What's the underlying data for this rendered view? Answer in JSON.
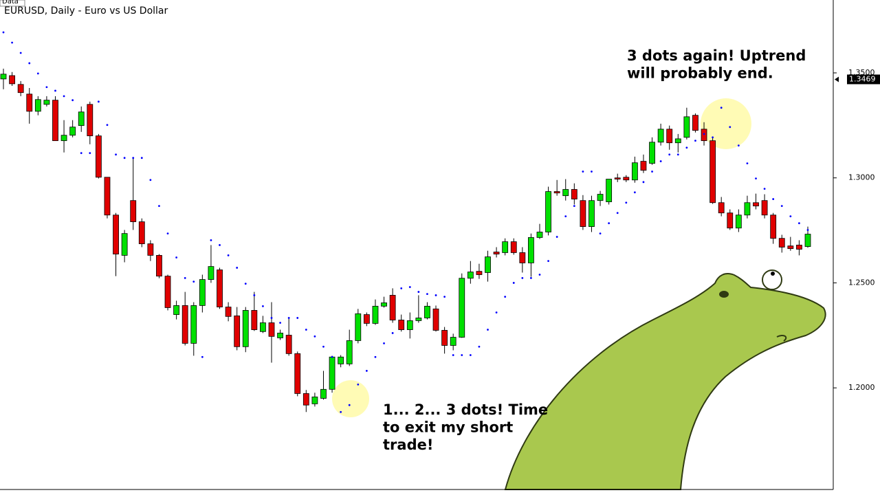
{
  "chart_data": {
    "type": "candlestick",
    "title": "EURUSD, Daily - Euro vs US Dollar",
    "tab_label": "Data",
    "ylim": [
      1.1516,
      1.3847
    ],
    "yticks": [
      {
        "value": 1.2,
        "label": "1.2000"
      },
      {
        "value": 1.25,
        "label": "1.2500"
      },
      {
        "value": 1.3,
        "label": "1.3000"
      },
      {
        "value": 1.35,
        "label": "1.3500"
      }
    ],
    "price_label": {
      "value": 1.3469,
      "label": "1.3469"
    },
    "up_color": "#00e000",
    "down_color": "#e00000",
    "sar_color": "#0000ff",
    "open": [
      1.3471,
      1.3487,
      1.3445,
      1.3399,
      1.3317,
      1.335,
      1.337,
      1.3177,
      1.3203,
      1.3249,
      1.335,
      1.32,
      1.3003,
      1.2823,
      1.2631,
      1.2892,
      1.2791,
      1.2686,
      1.2631,
      1.2532,
      1.2349,
      1.2392,
      1.2212,
      1.2392,
      1.2516,
      1.2562,
      1.2385,
      1.2343,
      1.2196,
      1.2369,
      1.2268,
      1.231,
      1.2238,
      1.2251,
      1.2163,
      1.1973,
      1.1924,
      1.195,
      1.1993,
      1.2114,
      1.2114,
      1.2225,
      1.2349,
      1.2307,
      1.2389,
      1.2441,
      1.2323,
      1.2277,
      1.232,
      1.2333,
      1.2376,
      1.2274,
      1.2202,
      1.2241,
      1.2522,
      1.2555,
      1.2549,
      1.2647,
      1.2644,
      1.2696,
      1.2644,
      1.2595,
      1.2716,
      1.2742,
      1.2935,
      1.2915,
      1.2945,
      1.2892,
      1.2768,
      1.2892,
      1.2886,
      1.3,
      1.3003,
      1.299,
      1.3079,
      1.3069,
      1.317,
      1.3232,
      1.3167,
      1.3193,
      1.3298,
      1.3232,
      1.3177,
      1.2882,
      1.2833,
      1.2761,
      1.2823,
      1.2882,
      1.2892,
      1.2823,
      1.2712,
      1.2676,
      1.268,
      1.2673
    ],
    "high": [
      1.352,
      1.3504,
      1.3461,
      1.3428,
      1.3389,
      1.3389,
      1.3389,
      1.3275,
      1.3275,
      1.334,
      1.3363,
      1.3209,
      1.3003,
      1.2833,
      1.2752,
      1.3095,
      1.2807,
      1.2703,
      1.2637,
      1.2539,
      1.2415,
      1.2457,
      1.2408,
      1.2539,
      1.268,
      1.2572,
      1.2408,
      1.2385,
      1.2385,
      1.2457,
      1.2343,
      1.2408,
      1.2277,
      1.2333,
      1.2173,
      1.199,
      1.1977,
      1.2081,
      1.2153,
      1.2156,
      1.2277,
      1.2376,
      1.2359,
      1.2421,
      1.2434,
      1.2474,
      1.2349,
      1.2359,
      1.2441,
      1.2408,
      1.2392,
      1.229,
      1.2258,
      1.2545,
      1.2604,
      1.2591,
      1.2653,
      1.267,
      1.2712,
      1.2712,
      1.267,
      1.2735,
      1.2781,
      1.2958,
      1.299,
      1.2994,
      1.2974,
      1.2918,
      1.2915,
      1.2938,
      1.2994,
      1.302,
      1.3013,
      1.3101,
      1.3111,
      1.3193,
      1.3258,
      1.3249,
      1.3209,
      1.3334,
      1.3307,
      1.3265,
      1.3193,
      1.2909,
      1.285,
      1.285,
      1.2915,
      1.2925,
      1.2922,
      1.2833,
      1.2729,
      1.2719,
      1.2703,
      1.2768
    ],
    "low": [
      1.3422,
      1.3438,
      1.3389,
      1.3258,
      1.3298,
      1.334,
      1.3177,
      1.3121,
      1.3193,
      1.3219,
      1.316,
      1.2997,
      1.2807,
      1.2532,
      1.2598,
      1.2752,
      1.267,
      1.2604,
      1.2522,
      1.2369,
      1.2326,
      1.2202,
      1.2153,
      1.2359,
      1.25,
      1.2376,
      1.2317,
      1.2179,
      1.217,
      1.2271,
      1.2261,
      1.212,
      1.2228,
      1.2153,
      1.196,
      1.1885,
      1.1911,
      1.1944,
      1.1977,
      1.2098,
      1.2104,
      1.2212,
      1.2294,
      1.23,
      1.2382,
      1.231,
      1.2268,
      1.2235,
      1.231,
      1.2326,
      1.2268,
      1.2163,
      1.2179,
      1.2238,
      1.2496,
      1.2519,
      1.2506,
      1.2621,
      1.2631,
      1.2634,
      1.2549,
      1.2529,
      1.2709,
      1.2726,
      1.2915,
      1.2892,
      1.2873,
      1.2752,
      1.2742,
      1.2866,
      1.2873,
      1.298,
      1.298,
      1.2977,
      1.3023,
      1.3062,
      1.3154,
      1.3134,
      1.3121,
      1.3183,
      1.3216,
      1.3154,
      1.2876,
      1.2817,
      1.2752,
      1.2742,
      1.2807,
      1.285,
      1.2807,
      1.2686,
      1.2644,
      1.2653,
      1.2631,
      1.2667
    ],
    "close": [
      1.3494,
      1.3448,
      1.3406,
      1.3317,
      1.3373,
      1.337,
      1.3177,
      1.3203,
      1.3242,
      1.3314,
      1.32,
      1.3003,
      1.2823,
      1.2637,
      1.2735,
      1.2791,
      1.2686,
      1.2631,
      1.2532,
      1.2382,
      1.2392,
      1.2212,
      1.2392,
      1.2516,
      1.2578,
      1.2385,
      1.234,
      1.2196,
      1.2369,
      1.2277,
      1.231,
      1.2245,
      1.2261,
      1.2163,
      1.1973,
      1.1918,
      1.1957,
      1.1993,
      1.2147,
      1.2147,
      1.2225,
      1.2353,
      1.2307,
      1.2389,
      1.2405,
      1.2323,
      1.2277,
      1.232,
      1.2333,
      1.2389,
      1.2274,
      1.2202,
      1.2241,
      1.2522,
      1.2552,
      1.2539,
      1.2624,
      1.2637,
      1.2696,
      1.2644,
      1.2595,
      1.2716,
      1.2742,
      1.2935,
      1.2928,
      1.2945,
      1.2899,
      1.2768,
      1.2892,
      1.2922,
      1.2994,
      1.2994,
      1.299,
      1.3072,
      1.3036,
      1.317,
      1.3232,
      1.3167,
      1.3186,
      1.3291,
      1.3226,
      1.3177,
      1.2882,
      1.2833,
      1.2761,
      1.2823,
      1.2882,
      1.2866,
      1.2823,
      1.2712,
      1.267,
      1.2663,
      1.266,
      1.2732
    ],
    "sar": [
      1.3693,
      1.3644,
      1.3595,
      1.3546,
      1.3497,
      1.3432,
      1.3415,
      1.3389,
      1.337,
      1.3118,
      1.3118,
      1.3363,
      1.3252,
      1.3111,
      1.3095,
      1.3095,
      1.3095,
      1.299,
      1.2866,
      1.2735,
      1.2621,
      1.2523,
      1.2506,
      1.2147,
      1.2703,
      1.268,
      1.2631,
      1.2572,
      1.2496,
      1.2441,
      1.2389,
      1.2333,
      1.231,
      1.2333,
      1.2333,
      1.2277,
      1.2245,
      1.2196,
      1.2147,
      1.1885,
      1.1918,
      1.2016,
      1.2081,
      1.2147,
      1.2212,
      1.2261,
      1.2474,
      1.248,
      1.2457,
      1.2447,
      1.2441,
      1.2434,
      1.2156,
      1.2156,
      1.2156,
      1.2196,
      1.2277,
      1.2359,
      1.2434,
      1.25,
      1.2523,
      1.2523,
      1.2539,
      1.2604,
      1.2719,
      1.2817,
      1.2866,
      1.303,
      1.303,
      1.2735,
      1.2784,
      1.2833,
      1.2882,
      1.2931,
      1.298,
      1.303,
      1.3079,
      1.3111,
      1.3111,
      1.3144,
      1.3177,
      1.3209,
      1.3193,
      1.3334,
      1.3242,
      1.3154,
      1.3069,
      1.2997,
      1.2948,
      1.2899,
      1.2866,
      1.2817,
      1.2784,
      1.2752
    ],
    "annotations": [
      {
        "lines": [
          "3 dots again! Uptrend",
          "will probably end."
        ]
      },
      {
        "lines": [
          "1... 2... 3 dots! Time",
          "to exit my short",
          "trade!"
        ]
      }
    ]
  }
}
